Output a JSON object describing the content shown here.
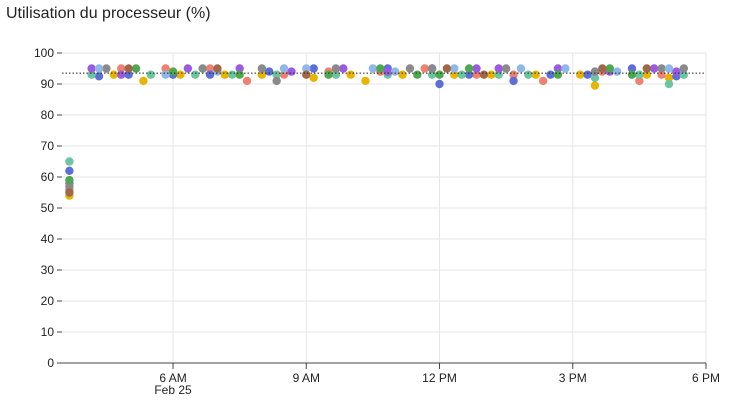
{
  "chart_data": {
    "type": "scatter",
    "title": "Utilisation du processeur (%)",
    "xlabel": "",
    "ylabel": "",
    "ylim": [
      0,
      100
    ],
    "xlim": [
      "2024-02-25T03:30",
      "2024-02-25T18:00"
    ],
    "yticks": [
      0,
      10,
      20,
      30,
      40,
      50,
      60,
      70,
      80,
      90,
      100
    ],
    "xticks": [
      {
        "t": "2024-02-25T06:00",
        "label": "6 AM",
        "sublabel": "Feb 25"
      },
      {
        "t": "2024-02-25T09:00",
        "label": "9 AM",
        "sublabel": ""
      },
      {
        "t": "2024-02-25T12:00",
        "label": "12 PM",
        "sublabel": ""
      },
      {
        "t": "2024-02-25T15:00",
        "label": "3 PM",
        "sublabel": ""
      },
      {
        "t": "2024-02-25T18:00",
        "label": "6 PM",
        "sublabel": ""
      }
    ],
    "grid": true,
    "legend": "none",
    "reference_line": {
      "y": 93.5,
      "style": "dotted",
      "color": "#222222"
    },
    "series": [
      {
        "color": "#e8b400",
        "points": [
          [
            "2024-02-25T03:40",
            54
          ],
          [
            "2024-02-25T04:40",
            93
          ],
          [
            "2024-02-25T05:20",
            91
          ],
          [
            "2024-02-25T06:10",
            93
          ],
          [
            "2024-02-25T07:10",
            93
          ],
          [
            "2024-02-25T08:00",
            93
          ],
          [
            "2024-02-25T09:10",
            92
          ],
          [
            "2024-02-25T10:00",
            93
          ],
          [
            "2024-02-25T10:20",
            91
          ],
          [
            "2024-02-25T11:10",
            93
          ],
          [
            "2024-02-25T12:20",
            93
          ],
          [
            "2024-02-25T13:10",
            93
          ],
          [
            "2024-02-25T14:10",
            93
          ],
          [
            "2024-02-25T15:10",
            93
          ],
          [
            "2024-02-25T15:30",
            89.5
          ],
          [
            "2024-02-25T16:40",
            93
          ],
          [
            "2024-02-25T17:10",
            92
          ]
        ]
      },
      {
        "color": "#f08070",
        "points": [
          [
            "2024-02-25T03:40",
            56
          ],
          [
            "2024-02-25T04:50",
            95
          ],
          [
            "2024-02-25T05:50",
            95
          ],
          [
            "2024-02-25T06:50",
            95
          ],
          [
            "2024-02-25T07:40",
            91
          ],
          [
            "2024-02-25T08:30",
            93
          ],
          [
            "2024-02-25T09:30",
            94
          ],
          [
            "2024-02-25T10:40",
            94
          ],
          [
            "2024-02-25T11:40",
            95
          ],
          [
            "2024-02-25T12:50",
            93
          ],
          [
            "2024-02-25T13:40",
            93
          ],
          [
            "2024-02-25T14:20",
            91
          ],
          [
            "2024-02-25T15:40",
            94
          ],
          [
            "2024-02-25T16:30",
            91
          ],
          [
            "2024-02-25T17:00",
            93
          ]
        ]
      },
      {
        "color": "#5b6fd6",
        "points": [
          [
            "2024-02-25T03:40",
            62
          ],
          [
            "2024-02-25T04:20",
            92.5
          ],
          [
            "2024-02-25T05:00",
            93
          ],
          [
            "2024-02-25T06:00",
            93
          ],
          [
            "2024-02-25T06:50",
            93
          ],
          [
            "2024-02-25T08:10",
            94
          ],
          [
            "2024-02-25T09:10",
            95
          ],
          [
            "2024-02-25T10:50",
            95
          ],
          [
            "2024-02-25T12:00",
            90
          ],
          [
            "2024-02-25T12:40",
            93
          ],
          [
            "2024-02-25T13:40",
            91
          ],
          [
            "2024-02-25T14:30",
            93
          ],
          [
            "2024-02-25T15:20",
            93
          ],
          [
            "2024-02-25T16:20",
            95
          ],
          [
            "2024-02-25T17:20",
            92.5
          ]
        ]
      },
      {
        "color": "#6cc4a0",
        "points": [
          [
            "2024-02-25T03:40",
            65
          ],
          [
            "2024-02-25T04:10",
            93
          ],
          [
            "2024-02-25T05:30",
            93
          ],
          [
            "2024-02-25T06:30",
            93
          ],
          [
            "2024-02-25T07:20",
            93
          ],
          [
            "2024-02-25T08:20",
            93
          ],
          [
            "2024-02-25T09:40",
            93
          ],
          [
            "2024-02-25T10:50",
            93
          ],
          [
            "2024-02-25T11:50",
            93
          ],
          [
            "2024-02-25T12:30",
            93
          ],
          [
            "2024-02-25T13:20",
            93
          ],
          [
            "2024-02-25T14:00",
            93
          ],
          [
            "2024-02-25T15:30",
            92
          ],
          [
            "2024-02-25T16:30",
            93
          ],
          [
            "2024-02-25T17:30",
            93
          ],
          [
            "2024-02-25T17:10",
            90
          ]
        ]
      },
      {
        "color": "#9a5be0",
        "points": [
          [
            "2024-02-25T03:40",
            58
          ],
          [
            "2024-02-25T04:10",
            95
          ],
          [
            "2024-02-25T04:50",
            93
          ],
          [
            "2024-02-25T06:20",
            95
          ],
          [
            "2024-02-25T07:30",
            95
          ],
          [
            "2024-02-25T08:40",
            94
          ],
          [
            "2024-02-25T09:50",
            95
          ],
          [
            "2024-02-25T10:50",
            94
          ],
          [
            "2024-02-25T11:50",
            95
          ],
          [
            "2024-02-25T12:50",
            95
          ],
          [
            "2024-02-25T13:20",
            95
          ],
          [
            "2024-02-25T14:40",
            95
          ],
          [
            "2024-02-25T15:50",
            94
          ],
          [
            "2024-02-25T16:50",
            95
          ],
          [
            "2024-02-25T17:20",
            94
          ]
        ]
      },
      {
        "color": "#8a8a8a",
        "points": [
          [
            "2024-02-25T03:40",
            57
          ],
          [
            "2024-02-25T04:30",
            95
          ],
          [
            "2024-02-25T06:40",
            95
          ],
          [
            "2024-02-25T08:00",
            95
          ],
          [
            "2024-02-25T08:20",
            91
          ],
          [
            "2024-02-25T09:40",
            95
          ],
          [
            "2024-02-25T11:20",
            95
          ],
          [
            "2024-02-25T11:50",
            95
          ],
          [
            "2024-02-25T13:30",
            95
          ],
          [
            "2024-02-25T15:30",
            94
          ],
          [
            "2024-02-25T17:00",
            95
          ],
          [
            "2024-02-25T17:30",
            95
          ]
        ]
      },
      {
        "color": "#8fb8e8",
        "points": [
          [
            "2024-02-25T04:20",
            95
          ],
          [
            "2024-02-25T05:50",
            93
          ],
          [
            "2024-02-25T07:00",
            94
          ],
          [
            "2024-02-25T08:30",
            95
          ],
          [
            "2024-02-25T09:00",
            95
          ],
          [
            "2024-02-25T10:30",
            95
          ],
          [
            "2024-02-25T11:00",
            94
          ],
          [
            "2024-02-25T12:20",
            95
          ],
          [
            "2024-02-25T13:50",
            95
          ],
          [
            "2024-02-25T14:50",
            95
          ],
          [
            "2024-02-25T16:00",
            94
          ],
          [
            "2024-02-25T17:10",
            95
          ]
        ]
      },
      {
        "color": "#4fa850",
        "points": [
          [
            "2024-02-25T03:40",
            59
          ],
          [
            "2024-02-25T05:10",
            95
          ],
          [
            "2024-02-25T06:00",
            94
          ],
          [
            "2024-02-25T07:30",
            93
          ],
          [
            "2024-02-25T09:30",
            93
          ],
          [
            "2024-02-25T10:40",
            95
          ],
          [
            "2024-02-25T11:30",
            93
          ],
          [
            "2024-02-25T12:00",
            93
          ],
          [
            "2024-02-25T12:40",
            95
          ],
          [
            "2024-02-25T14:40",
            93
          ],
          [
            "2024-02-25T15:50",
            95
          ],
          [
            "2024-02-25T16:20",
            93
          ]
        ]
      },
      {
        "color": "#a0684a",
        "points": [
          [
            "2024-02-25T03:40",
            55
          ],
          [
            "2024-02-25T05:00",
            95
          ],
          [
            "2024-02-25T07:00",
            95
          ],
          [
            "2024-02-25T09:00",
            93
          ],
          [
            "2024-02-25T12:10",
            95
          ],
          [
            "2024-02-25T13:00",
            93
          ],
          [
            "2024-02-25T15:40",
            95
          ],
          [
            "2024-02-25T16:40",
            95
          ]
        ]
      }
    ]
  }
}
